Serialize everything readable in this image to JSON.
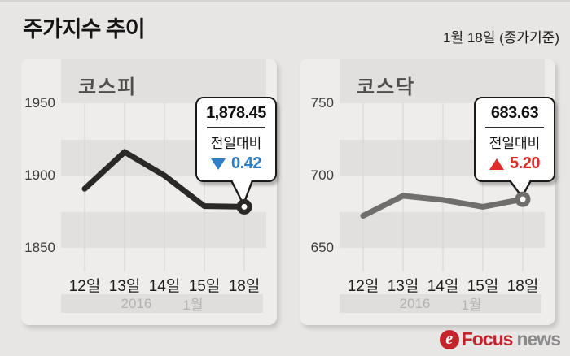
{
  "header": {
    "title": "주가지수 추이",
    "date_note": "1월 18일 (종가기준)"
  },
  "chart_data": [
    {
      "type": "line",
      "title": "코스피",
      "categories": [
        "12일",
        "13일",
        "14일",
        "15일",
        "18일"
      ],
      "values": [
        1890.9,
        1916.3,
        1900.0,
        1878.9,
        1878.45
      ],
      "ylim": [
        1850,
        1950
      ],
      "yticks": [
        "1950",
        "1900",
        "1850"
      ],
      "xlabel": "",
      "ylabel": "",
      "grid": "alternating horizontal bands",
      "legend": "none",
      "line_color": "#2b2927",
      "period": {
        "year": "2016",
        "month": "1월"
      },
      "annotation": {
        "value": "1,878.45",
        "label": "전일대비",
        "direction": "down",
        "change": "0.42",
        "change_color": "#2e7fc6"
      }
    },
    {
      "type": "line",
      "title": "코스닥",
      "categories": [
        "12일",
        "13일",
        "14일",
        "15일",
        "18일"
      ],
      "values": [
        672.2,
        686.0,
        683.2,
        678.4,
        683.63
      ],
      "ylim": [
        650,
        750
      ],
      "yticks": [
        "750",
        "700",
        "650"
      ],
      "xlabel": "",
      "ylabel": "",
      "grid": "alternating horizontal bands",
      "legend": "none",
      "line_color": "#6f6e6d",
      "period": {
        "year": "2016",
        "month": "1월"
      },
      "annotation": {
        "value": "683.63",
        "label": "전일대비",
        "direction": "up",
        "change": "5.20",
        "change_color": "#e12b2b"
      }
    }
  ],
  "footer": {
    "logo_icon": "focus-news-logo-icon",
    "logo_icon_letter": "e",
    "brand_primary": "Focus",
    "brand_secondary": "news",
    "brand_color": "#c4242b"
  }
}
